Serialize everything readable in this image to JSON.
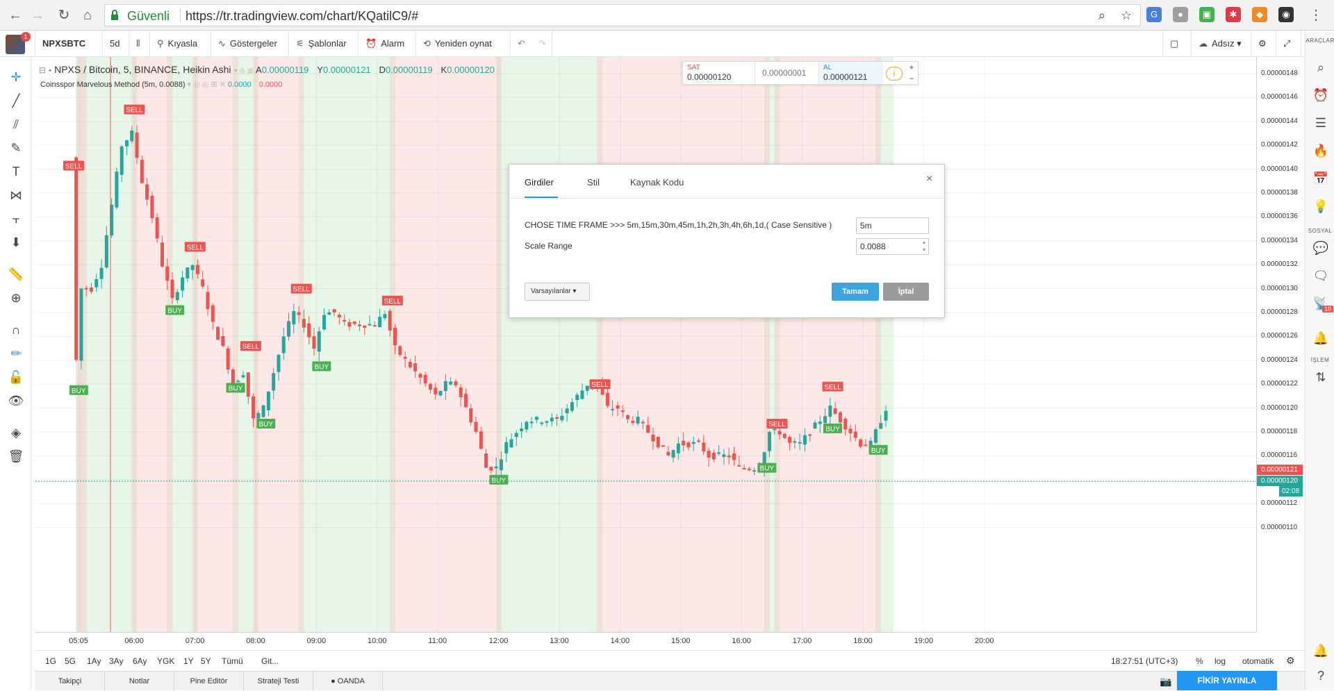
{
  "browser": {
    "secure_label": "Güvenli",
    "url_prefix": "https://",
    "url_host": "tr.tradingview.com",
    "url_path": "/chart/KQatilC9/#"
  },
  "toolbar": {
    "symbol": "NPXSBTC",
    "interval": "5d",
    "compare": "Kıyasla",
    "indicators": "Göstergeler",
    "templates": "Şablonlar",
    "alarm": "Alarm",
    "replay": "Yeniden oynat",
    "layout_name": "Adsız",
    "notification_count": "1"
  },
  "legend": {
    "title": "NPXS / Bitcoin, 5, BINANCE, Heikin Ashi",
    "o_label": "A",
    "o_value": "0.00000119",
    "h_label": "Y",
    "h_value": "0.00000121",
    "l_label": "D",
    "l_value": "0.00000119",
    "c_label": "K",
    "c_value": "0.00000120",
    "indicator": "Coinsspor Marvelous Method (5m, 0.0088)",
    "ind_val1": "0.0000",
    "ind_val2": "0.0000"
  },
  "trade": {
    "sell_label": "SAT",
    "sell_price": "0.00000120",
    "spread": "0.00000001",
    "buy_label": "AL",
    "buy_price": "0.00000121"
  },
  "dialog": {
    "tab_inputs": "Girdiler",
    "tab_style": "Stil",
    "tab_source": "Kaynak Kodu",
    "timeframe_label": "CHOSE TIME FRAME >>> 5m,15m,30m,45m,1h,2h,3h,4h,6h,1d,( Case Sensitive )",
    "timeframe_value": "5m",
    "scale_label": "Scale Range",
    "scale_value": "0.0088",
    "defaults": "Varsayılanlar",
    "ok": "Tamam",
    "cancel": "İptal"
  },
  "price_axis": {
    "ticks": [
      "0.00000148",
      "0.00000146",
      "0.00000144",
      "0.00000142",
      "0.00000140",
      "0.00000138",
      "0.00000136",
      "0.00000134",
      "0.00000132",
      "0.00000130",
      "0.00000128",
      "0.00000126",
      "0.00000124",
      "0.00000122",
      "0.00000120",
      "0.00000118",
      "0.00000116",
      "0.00000114",
      "0.00000112",
      "0.00000110"
    ],
    "ask_label": "0.00000121",
    "last_label": "0.00000120",
    "countdown": "02:08"
  },
  "time_axis": {
    "ticks": [
      "05:05",
      "06:00",
      "07:00",
      "08:00",
      "09:00",
      "10:00",
      "11:00",
      "12:00",
      "13:00",
      "14:00",
      "15:00",
      "16:00",
      "17:00",
      "18:00",
      "19:00",
      "20:00"
    ]
  },
  "signals": {
    "sell": "SELL",
    "buy": "BUY"
  },
  "chart_data": {
    "type": "candlestick",
    "title": "NPXS / Bitcoin, 5, BINANCE, Heikin Ashi",
    "ylim": [
      1.1e-06,
      1.49e-06
    ],
    "x_range": [
      "05:00",
      "20:20"
    ],
    "grid": true,
    "background_zones": [
      {
        "from": "05:05",
        "to": "05:10",
        "trend": "sell"
      },
      {
        "from": "05:10",
        "to": "06:00",
        "trend": "buy"
      },
      {
        "from": "06:00",
        "to": "06:35",
        "trend": "sell"
      },
      {
        "from": "06:35",
        "to": "07:00",
        "trend": "buy"
      },
      {
        "from": "07:00",
        "to": "07:40",
        "trend": "sell"
      },
      {
        "from": "07:40",
        "to": "08:00",
        "trend": "buy"
      },
      {
        "from": "08:00",
        "to": "08:45",
        "trend": "sell"
      },
      {
        "from": "08:45",
        "to": "10:15",
        "trend": "buy"
      },
      {
        "from": "10:15",
        "to": "12:00",
        "trend": "sell"
      },
      {
        "from": "12:00",
        "to": "13:40",
        "trend": "buy"
      },
      {
        "from": "13:40",
        "to": "16:25",
        "trend": "sell"
      },
      {
        "from": "16:25",
        "to": "16:35",
        "trend": "buy"
      },
      {
        "from": "16:35",
        "to": "18:15",
        "trend": "sell"
      },
      {
        "from": "18:15",
        "to": "18:30",
        "trend": "buy"
      }
    ],
    "signals": [
      {
        "time": "05:00",
        "price": 1.403e-06,
        "type": "SELL"
      },
      {
        "time": "05:05",
        "price": 1.215e-06,
        "type": "BUY"
      },
      {
        "time": "06:00",
        "price": 1.45e-06,
        "type": "SELL"
      },
      {
        "time": "06:40",
        "price": 1.282e-06,
        "type": "BUY"
      },
      {
        "time": "07:00",
        "price": 1.335e-06,
        "type": "SELL"
      },
      {
        "time": "07:40",
        "price": 1.217e-06,
        "type": "BUY"
      },
      {
        "time": "07:55",
        "price": 1.252e-06,
        "type": "SELL"
      },
      {
        "time": "08:10",
        "price": 1.187e-06,
        "type": "BUY"
      },
      {
        "time": "08:45",
        "price": 1.3e-06,
        "type": "SELL"
      },
      {
        "time": "09:05",
        "price": 1.235e-06,
        "type": "BUY"
      },
      {
        "time": "10:15",
        "price": 1.29e-06,
        "type": "SELL"
      },
      {
        "time": "12:00",
        "price": 1.14e-06,
        "type": "BUY"
      },
      {
        "time": "13:40",
        "price": 1.22e-06,
        "type": "SELL"
      },
      {
        "time": "16:25",
        "price": 1.15e-06,
        "type": "BUY"
      },
      {
        "time": "16:35",
        "price": 1.187e-06,
        "type": "SELL"
      },
      {
        "time": "17:30",
        "price": 1.183e-06,
        "type": "BUY"
      },
      {
        "time": "17:30",
        "price": 1.218e-06,
        "type": "SELL"
      },
      {
        "time": "18:15",
        "price": 1.165e-06,
        "type": "BUY"
      }
    ],
    "close_path": [
      [
        "05:00",
        1.41e-06
      ],
      [
        "05:05",
        1.24e-06
      ],
      [
        "05:10",
        1.3e-06
      ],
      [
        "05:20",
        1.3e-06
      ],
      [
        "05:30",
        1.32e-06
      ],
      [
        "05:40",
        1.37e-06
      ],
      [
        "05:50",
        1.42e-06
      ],
      [
        "06:00",
        1.43e-06
      ],
      [
        "06:10",
        1.39e-06
      ],
      [
        "06:20",
        1.36e-06
      ],
      [
        "06:30",
        1.32e-06
      ],
      [
        "06:40",
        1.29e-06
      ],
      [
        "06:50",
        1.31e-06
      ],
      [
        "07:00",
        1.32e-06
      ],
      [
        "07:10",
        1.3e-06
      ],
      [
        "07:20",
        1.27e-06
      ],
      [
        "07:30",
        1.25e-06
      ],
      [
        "07:40",
        1.22e-06
      ],
      [
        "07:50",
        1.23e-06
      ],
      [
        "08:00",
        1.19e-06
      ],
      [
        "08:10",
        1.2e-06
      ],
      [
        "08:20",
        1.23e-06
      ],
      [
        "08:30",
        1.26e-06
      ],
      [
        "08:40",
        1.28e-06
      ],
      [
        "08:50",
        1.27e-06
      ],
      [
        "09:00",
        1.25e-06
      ],
      [
        "09:10",
        1.28e-06
      ],
      [
        "09:20",
        1.28e-06
      ],
      [
        "09:30",
        1.27e-06
      ],
      [
        "09:40",
        1.27e-06
      ],
      [
        "09:50",
        1.27e-06
      ],
      [
        "10:00",
        1.27e-06
      ],
      [
        "10:10",
        1.28e-06
      ],
      [
        "10:20",
        1.25e-06
      ],
      [
        "10:30",
        1.24e-06
      ],
      [
        "10:40",
        1.23e-06
      ],
      [
        "10:50",
        1.22e-06
      ],
      [
        "11:00",
        1.21e-06
      ],
      [
        "11:10",
        1.22e-06
      ],
      [
        "11:20",
        1.22e-06
      ],
      [
        "11:30",
        1.2e-06
      ],
      [
        "11:40",
        1.18e-06
      ],
      [
        "11:50",
        1.15e-06
      ],
      [
        "12:00",
        1.15e-06
      ],
      [
        "12:10",
        1.17e-06
      ],
      [
        "12:20",
        1.18e-06
      ],
      [
        "12:30",
        1.19e-06
      ],
      [
        "12:40",
        1.19e-06
      ],
      [
        "12:50",
        1.19e-06
      ],
      [
        "13:00",
        1.19e-06
      ],
      [
        "13:10",
        1.2e-06
      ],
      [
        "13:20",
        1.21e-06
      ],
      [
        "13:30",
        1.22e-06
      ],
      [
        "13:40",
        1.22e-06
      ],
      [
        "13:50",
        1.2e-06
      ],
      [
        "14:00",
        1.2e-06
      ],
      [
        "14:10",
        1.19e-06
      ],
      [
        "14:20",
        1.19e-06
      ],
      [
        "14:30",
        1.18e-06
      ],
      [
        "14:40",
        1.17e-06
      ],
      [
        "14:50",
        1.16e-06
      ],
      [
        "15:00",
        1.17e-06
      ],
      [
        "15:10",
        1.17e-06
      ],
      [
        "15:20",
        1.17e-06
      ],
      [
        "15:30",
        1.16e-06
      ],
      [
        "15:40",
        1.16e-06
      ],
      [
        "15:50",
        1.16e-06
      ],
      [
        "16:00",
        1.15e-06
      ],
      [
        "16:10",
        1.15e-06
      ],
      [
        "16:20",
        1.15e-06
      ],
      [
        "16:30",
        1.18e-06
      ],
      [
        "16:40",
        1.18e-06
      ],
      [
        "16:50",
        1.17e-06
      ],
      [
        "17:00",
        1.17e-06
      ],
      [
        "17:10",
        1.18e-06
      ],
      [
        "17:20",
        1.19e-06
      ],
      [
        "17:30",
        1.2e-06
      ],
      [
        "17:40",
        1.19e-06
      ],
      [
        "17:50",
        1.18e-06
      ],
      [
        "18:00",
        1.17e-06
      ],
      [
        "18:10",
        1.17e-06
      ],
      [
        "18:20",
        1.19e-06
      ],
      [
        "18:25",
        1.2e-06
      ]
    ]
  },
  "bottom": {
    "ranges": [
      "1G",
      "5G",
      "1Ay",
      "3Ay",
      "6Ay",
      "YGK",
      "1Y",
      "5Y",
      "Tümü"
    ],
    "goto": "Git...",
    "clock": "18:27:51 (UTC+3)",
    "percent": "%",
    "log": "log",
    "auto": "otomatik"
  },
  "tabs": {
    "items": [
      "Takipçi",
      "Notlar",
      "Pine Editör",
      "Strateji Testi",
      "OANDA"
    ],
    "publish": "FİKİR YAYINLA"
  },
  "sidebar": {
    "tools_label": "ARAÇLAR",
    "social_label": "SOSYAL",
    "trade_label": "İŞLEM",
    "chat_count": "10"
  },
  "colors": {
    "up": "#26a69a",
    "down": "#ef5350",
    "buy_zone": "#e8f5e9",
    "sell_zone": "#fde8e8",
    "accent": "#2196f3"
  }
}
